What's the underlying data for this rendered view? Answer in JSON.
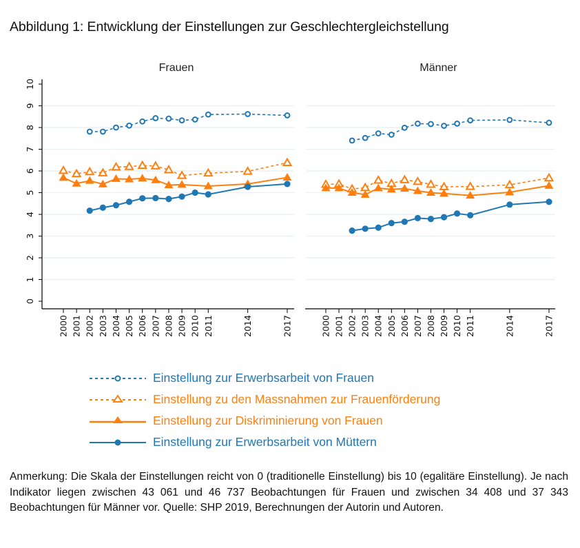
{
  "figure": {
    "title": "Abbildung 1: Entwicklung der Einstellungen zur Geschlechtergleichstellung",
    "note": "Anmerkung: Die Skala der Einstellungen reicht von 0 (traditionelle Einstellung) bis 10 (egalitäre Einstellung). Je nach Indikator liegen zwischen 43 061 und 46 737 Beobachtungen für Frauen und zwischen 34 408 und 37 343 Beobachtungen für Männer vor. Quelle: SHP 2019, Berechnungen der Autorin und Autoren."
  },
  "colors": {
    "blue": "#1F77B4",
    "orange": "#FF7F0E",
    "grid": "#EAF2F3",
    "axis": "#000000"
  },
  "chart_data": {
    "type": "line",
    "title": "Abbildung 1: Entwicklung der Einstellungen zur Geschlechtergleichstellung",
    "xlabel": "",
    "ylabel": "",
    "ylim": [
      0,
      10
    ],
    "yticks": [
      "0",
      "1",
      "2",
      "3",
      "4",
      "5",
      "6",
      "7",
      "8",
      "9",
      "10"
    ],
    "x": [
      2000,
      2001,
      2002,
      2003,
      2004,
      2005,
      2006,
      2007,
      2008,
      2009,
      2010,
      2011,
      2014,
      2017
    ],
    "xticks": [
      "2000",
      "2001",
      "2002",
      "2003",
      "2004",
      "2005",
      "2006",
      "2007",
      "2008",
      "2009",
      "2010",
      "2011",
      "2014",
      "2017"
    ],
    "grid": "horizontal",
    "legend_position": "bottom",
    "legend": [
      {
        "key": "erwerb_frauen",
        "label": "Einstellung zur Erwerbsarbeit von Frauen",
        "color": "#1F77B4",
        "style": "dashed",
        "marker": "hollow-circle"
      },
      {
        "key": "massnahmen",
        "label": "Einstellung zu den Massnahmen zur Frauenförderung",
        "color": "#FF7F0E",
        "style": "dashed",
        "marker": "hollow-triangle"
      },
      {
        "key": "diskriminierung",
        "label": "Einstellung zur Diskriminierung von Frauen",
        "color": "#FF7F0E",
        "style": "solid",
        "marker": "filled-triangle"
      },
      {
        "key": "erwerb_muetter",
        "label": "Einstellung zur Erwerbsarbeit von Müttern",
        "color": "#1F77B4",
        "style": "solid",
        "marker": "filled-circle"
      }
    ],
    "panels": [
      {
        "title": "Frauen",
        "series": [
          {
            "key": "erwerb_frauen",
            "points": [
              [
                2002,
                7.81
              ],
              [
                2003,
                7.81
              ],
              [
                2004,
                8.0
              ],
              [
                2005,
                8.09
              ],
              [
                2006,
                8.28
              ],
              [
                2007,
                8.43
              ],
              [
                2008,
                8.41
              ],
              [
                2009,
                8.33
              ],
              [
                2010,
                8.37
              ],
              [
                2011,
                8.6
              ],
              [
                2014,
                8.62
              ],
              [
                2017,
                8.56
              ]
            ]
          },
          {
            "key": "massnahmen",
            "points": [
              [
                2000,
                6.02
              ],
              [
                2001,
                5.87
              ],
              [
                2002,
                5.96
              ],
              [
                2003,
                5.91
              ],
              [
                2004,
                6.18
              ],
              [
                2005,
                6.2
              ],
              [
                2006,
                6.25
              ],
              [
                2007,
                6.23
              ],
              [
                2008,
                6.05
              ],
              [
                2009,
                5.79
              ],
              [
                2011,
                5.9
              ],
              [
                2014,
                5.98
              ],
              [
                2017,
                6.38
              ]
            ]
          },
          {
            "key": "diskriminierung",
            "points": [
              [
                2000,
                5.69
              ],
              [
                2001,
                5.42
              ],
              [
                2002,
                5.55
              ],
              [
                2003,
                5.39
              ],
              [
                2004,
                5.64
              ],
              [
                2005,
                5.62
              ],
              [
                2006,
                5.66
              ],
              [
                2007,
                5.58
              ],
              [
                2008,
                5.35
              ],
              [
                2009,
                5.37
              ],
              [
                2011,
                5.3
              ],
              [
                2014,
                5.4
              ],
              [
                2017,
                5.7
              ]
            ]
          },
          {
            "key": "erwerb_muetter",
            "points": [
              [
                2002,
                4.17
              ],
              [
                2003,
                4.31
              ],
              [
                2004,
                4.42
              ],
              [
                2005,
                4.58
              ],
              [
                2006,
                4.74
              ],
              [
                2007,
                4.75
              ],
              [
                2008,
                4.71
              ],
              [
                2009,
                4.82
              ],
              [
                2010,
                5.0
              ],
              [
                2011,
                4.92
              ],
              [
                2014,
                5.27
              ],
              [
                2017,
                5.4
              ]
            ]
          }
        ]
      },
      {
        "title": "Männer",
        "series": [
          {
            "key": "erwerb_frauen",
            "points": [
              [
                2002,
                7.4
              ],
              [
                2003,
                7.52
              ],
              [
                2004,
                7.73
              ],
              [
                2005,
                7.67
              ],
              [
                2006,
                7.99
              ],
              [
                2007,
                8.18
              ],
              [
                2008,
                8.16
              ],
              [
                2009,
                8.08
              ],
              [
                2010,
                8.18
              ],
              [
                2011,
                8.33
              ],
              [
                2014,
                8.35
              ],
              [
                2017,
                8.22
              ]
            ]
          },
          {
            "key": "massnahmen",
            "points": [
              [
                2000,
                5.38
              ],
              [
                2001,
                5.4
              ],
              [
                2002,
                5.17
              ],
              [
                2003,
                5.23
              ],
              [
                2004,
                5.57
              ],
              [
                2005,
                5.42
              ],
              [
                2006,
                5.59
              ],
              [
                2007,
                5.51
              ],
              [
                2008,
                5.38
              ],
              [
                2009,
                5.27
              ],
              [
                2011,
                5.28
              ],
              [
                2014,
                5.36
              ],
              [
                2017,
                5.68
              ]
            ]
          },
          {
            "key": "diskriminierung",
            "points": [
              [
                2000,
                5.21
              ],
              [
                2001,
                5.21
              ],
              [
                2002,
                5.0
              ],
              [
                2003,
                4.91
              ],
              [
                2004,
                5.21
              ],
              [
                2005,
                5.15
              ],
              [
                2006,
                5.19
              ],
              [
                2007,
                5.08
              ],
              [
                2008,
                5.0
              ],
              [
                2009,
                4.96
              ],
              [
                2011,
                4.87
              ],
              [
                2014,
                5.02
              ],
              [
                2017,
                5.32
              ]
            ]
          },
          {
            "key": "erwerb_muetter",
            "points": [
              [
                2002,
                3.25
              ],
              [
                2003,
                3.34
              ],
              [
                2004,
                3.39
              ],
              [
                2005,
                3.6
              ],
              [
                2006,
                3.66
              ],
              [
                2007,
                3.83
              ],
              [
                2008,
                3.79
              ],
              [
                2009,
                3.87
              ],
              [
                2010,
                4.04
              ],
              [
                2011,
                3.96
              ],
              [
                2014,
                4.45
              ],
              [
                2017,
                4.58
              ]
            ]
          }
        ]
      }
    ]
  }
}
